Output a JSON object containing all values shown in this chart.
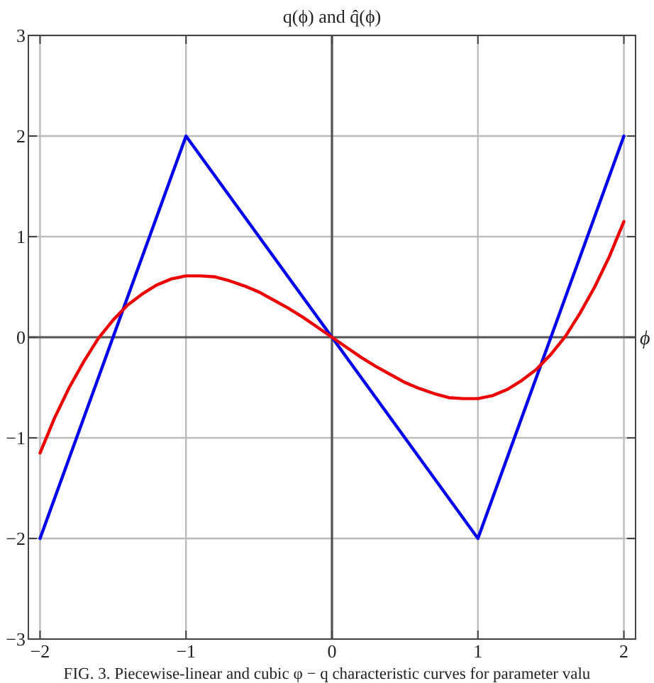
{
  "chart_data": {
    "type": "line",
    "title": "q(ϕ) and q̂(ϕ)",
    "xlabel": "ϕ",
    "xlim": [
      -2.08,
      2.08
    ],
    "ylim": [
      -3,
      3
    ],
    "xticks": [
      -2,
      -1,
      0,
      1,
      2
    ],
    "yticks": [
      -3,
      -2,
      -1,
      0,
      1,
      2,
      3
    ],
    "grid": true,
    "line_style": "solid",
    "series": [
      {
        "color": "#0000ee",
        "x": [
          -2,
          -1,
          1,
          2
        ],
        "values": [
          -2,
          2,
          -2,
          2
        ]
      },
      {
        "color": "#ee0000",
        "x": [
          -2,
          -1.9,
          -1.8,
          -1.7,
          -1.6,
          -1.5,
          -1.4,
          -1.3,
          -1.2,
          -1.1,
          -1,
          -0.9,
          -0.8,
          -0.7,
          -0.6,
          -0.5,
          -0.4,
          -0.3,
          -0.2,
          -0.1,
          0,
          0.1,
          0.2,
          0.3,
          0.4,
          0.5,
          0.6,
          0.7,
          0.8,
          0.9,
          1,
          1.1,
          1.2,
          1.3,
          1.4,
          1.5,
          1.6,
          1.7,
          1.8,
          1.9,
          2
        ],
        "values": [
          -1.15,
          -0.8,
          -0.5,
          -0.24,
          -0.01,
          0.17,
          0.32,
          0.43,
          0.52,
          0.58,
          0.61,
          0.61,
          0.6,
          0.56,
          0.51,
          0.45,
          0.37,
          0.29,
          0.2,
          0.1,
          0,
          -0.1,
          -0.2,
          -0.29,
          -0.37,
          -0.45,
          -0.51,
          -0.56,
          -0.6,
          -0.61,
          -0.61,
          -0.58,
          -0.52,
          -0.43,
          -0.32,
          -0.17,
          0.01,
          0.24,
          0.5,
          0.8,
          1.15
        ]
      }
    ],
    "annotations": [
      "FIG. 3.  Piecewise-linear and cubic φ − q characteristic curves for parameter valu"
    ]
  }
}
